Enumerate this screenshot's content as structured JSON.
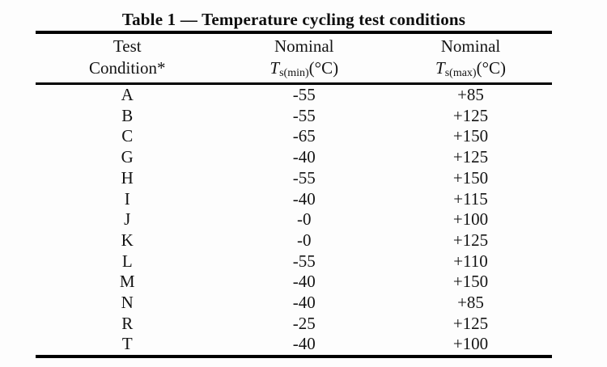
{
  "page": {
    "background_color": "#fdfdfd",
    "text_color": "#141414",
    "rule_color": "#000000"
  },
  "table": {
    "title": "Table 1 — Temperature cycling test conditions",
    "columns": [
      {
        "line1": "Test",
        "line2": "Condition*"
      },
      {
        "line1": "Nominal",
        "symbol": "T",
        "subscript": "s(min)",
        "unit": "(°C)"
      },
      {
        "line1": "Nominal",
        "symbol": "T",
        "subscript": "s(max)",
        "unit": "(°C)"
      }
    ],
    "rows": [
      {
        "condition": "A",
        "t_min": "-55",
        "t_max": "+85"
      },
      {
        "condition": "B",
        "t_min": "-55",
        "t_max": "+125"
      },
      {
        "condition": "C",
        "t_min": "-65",
        "t_max": "+150"
      },
      {
        "condition": "G",
        "t_min": "-40",
        "t_max": "+125"
      },
      {
        "condition": "H",
        "t_min": "-55",
        "t_max": "+150"
      },
      {
        "condition": "I",
        "t_min": "-40",
        "t_max": "+115"
      },
      {
        "condition": "J",
        "t_min": "-0",
        "t_max": "+100"
      },
      {
        "condition": "K",
        "t_min": "-0",
        "t_max": "+125"
      },
      {
        "condition": "L",
        "t_min": "-55",
        "t_max": "+110"
      },
      {
        "condition": "M",
        "t_min": "-40",
        "t_max": "+150"
      },
      {
        "condition": "N",
        "t_min": "-40",
        "t_max": "+85"
      },
      {
        "condition": "R",
        "t_min": "-25",
        "t_max": "+125"
      },
      {
        "condition": "T",
        "t_min": "-40",
        "t_max": "+100"
      }
    ]
  }
}
